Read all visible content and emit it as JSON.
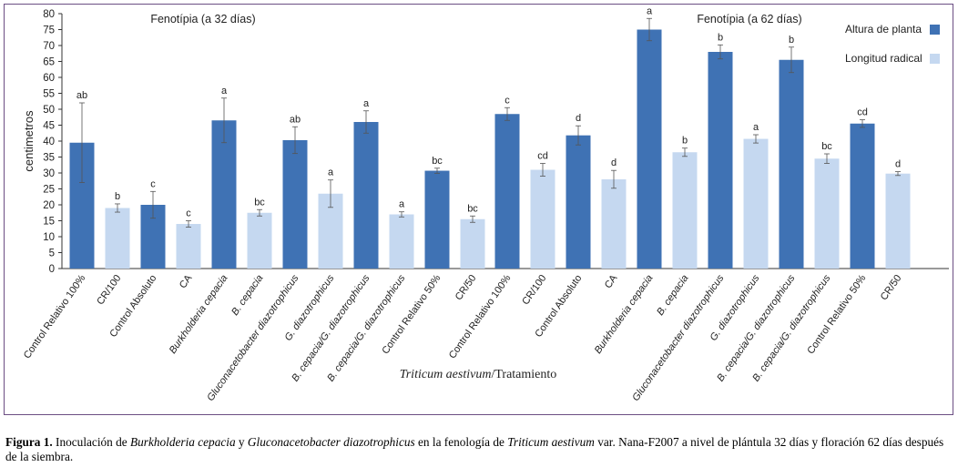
{
  "chart_data": {
    "type": "bar",
    "ylabel": "centimetros",
    "xlabel_italic": "Triticum aestivum",
    "xlabel_rest": "/Tratamiento",
    "ylim": [
      0,
      80
    ],
    "yticks": [
      0,
      5,
      10,
      15,
      20,
      25,
      30,
      35,
      40,
      45,
      50,
      55,
      60,
      65,
      70,
      75,
      80
    ],
    "panels": [
      {
        "title": "Fenotípia (a 32 días)",
        "bars": [
          {
            "label": "Control Relativo 100%",
            "series": "Altura de planta",
            "value": 39.5,
            "error": 12.5,
            "letter": "ab"
          },
          {
            "label": "CR/100",
            "series": "Longitud radical",
            "value": 19.0,
            "error": 1.3,
            "letter": "b"
          },
          {
            "label": "Control Absoluto",
            "series": "Altura de planta",
            "value": 20.0,
            "error": 4.2,
            "letter": "c"
          },
          {
            "label": "CA",
            "series": "Longitud radical",
            "value": 14.0,
            "error": 1.0,
            "letter": "c"
          },
          {
            "label": "Burkholderia cepacia",
            "series": "Altura de planta",
            "value": 46.5,
            "error": 7.0,
            "letter": "a"
          },
          {
            "label": "B. cepacia",
            "series": "Longitud radical",
            "value": 17.5,
            "error": 1.0,
            "letter": "bc"
          },
          {
            "label": "Gluconacetobacter diazotrophicus",
            "series": "Altura de planta",
            "value": 40.3,
            "error": 4.2,
            "letter": "ab"
          },
          {
            "label": "G. diazotrophicus",
            "series": "Longitud radical",
            "value": 23.5,
            "error": 4.3,
            "letter": "a"
          },
          {
            "label": "B. cepacia/G. diazotrophicus",
            "series": "Altura de planta",
            "value": 46.0,
            "error": 3.5,
            "letter": "a"
          },
          {
            "label": "B. cepacia/G. diazotrophicus",
            "series": "Longitud radical",
            "value": 17.0,
            "error": 0.8,
            "letter": "a"
          },
          {
            "label": "Control Relativo 50%",
            "series": "Altura de planta",
            "value": 30.7,
            "error": 0.8,
            "letter": "bc"
          },
          {
            "label": "CR/50",
            "series": "Longitud radical",
            "value": 15.5,
            "error": 1.0,
            "letter": "bc"
          }
        ]
      },
      {
        "title": "Fenotípia (a 62 días)",
        "bars": [
          {
            "label": "Control Relativo 100%",
            "series": "Altura de planta",
            "value": 48.5,
            "error": 2.0,
            "letter": "c"
          },
          {
            "label": "CR/100",
            "series": "Longitud radical",
            "value": 31.0,
            "error": 2.0,
            "letter": "cd"
          },
          {
            "label": "Control Absoluto",
            "series": "Altura de planta",
            "value": 41.8,
            "error": 3.0,
            "letter": "d"
          },
          {
            "label": "CA",
            "series": "Longitud radical",
            "value": 28.0,
            "error": 2.8,
            "letter": "d"
          },
          {
            "label": "Burkholderia cepacia",
            "series": "Altura de planta",
            "value": 75.0,
            "error": 3.5,
            "letter": "a"
          },
          {
            "label": "B. cepacia",
            "series": "Longitud radical",
            "value": 36.5,
            "error": 1.3,
            "letter": "b"
          },
          {
            "label": "Gluconacetobacter diazotrophicus",
            "series": "Altura de planta",
            "value": 68.0,
            "error": 2.2,
            "letter": "b"
          },
          {
            "label": "G. diazotrophicus",
            "series": "Longitud radical",
            "value": 40.7,
            "error": 1.3,
            "letter": "a"
          },
          {
            "label": "B. cepacia/G. diazotrophicus",
            "series": "Altura de planta",
            "value": 65.5,
            "error": 4.0,
            "letter": "b"
          },
          {
            "label": "B. cepacia/G. diazotrophicus",
            "series": "Longitud radical",
            "value": 34.5,
            "error": 1.5,
            "letter": "bc"
          },
          {
            "label": "Control Relativo 50%",
            "series": "Altura de planta",
            "value": 45.5,
            "error": 1.2,
            "letter": "cd"
          },
          {
            "label": "CR/50",
            "series": "Longitud radical",
            "value": 29.8,
            "error": 0.6,
            "letter": "d"
          }
        ]
      }
    ],
    "legend": {
      "position": "top-right",
      "entries": [
        {
          "name": "Altura de planta",
          "color": "#3f72b4"
        },
        {
          "name": "Longitud radical",
          "color": "#c5d8f0"
        }
      ]
    },
    "colors": {
      "Altura de planta": "#3f72b4",
      "Longitud radical": "#c5d8f0",
      "frame": "#6b4e83"
    }
  },
  "caption": {
    "label": "Figura 1.",
    "p1": " Inoculación de ",
    "i1": "Burkholderia cepacia",
    "p2": " y ",
    "i2": "Gluconacetobacter diazotrophicus",
    "p3": " en la fenología  de ",
    "i3": "Triticum aestivum",
    "p4": " var. Nana-F2007 a nivel de plántula 32 días y floración 62 días después de la siembra."
  }
}
